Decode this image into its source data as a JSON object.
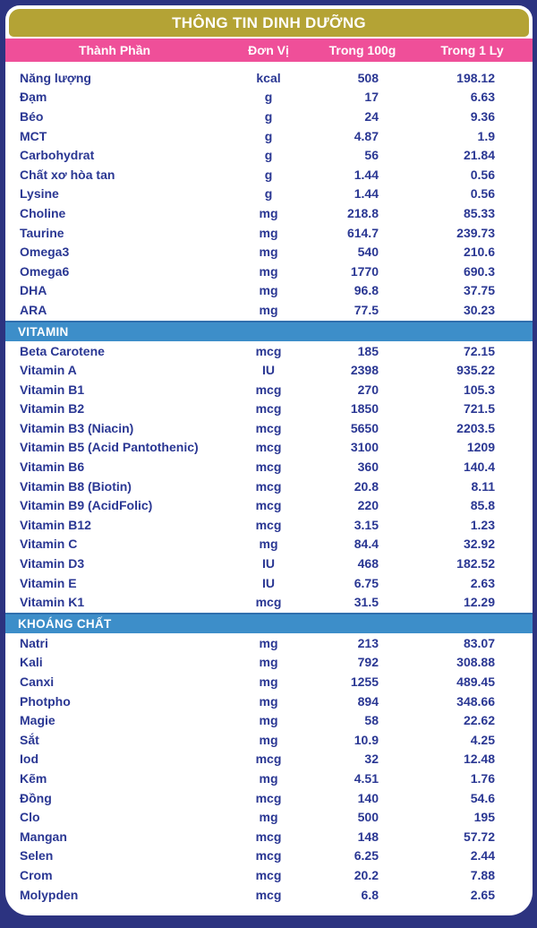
{
  "title": "THÔNG TIN DINH DƯỠNG",
  "columns": [
    "Thành Phần",
    "Đơn Vị",
    "Trong 100g",
    "Trong 1 Ly"
  ],
  "colors": {
    "navy_background": "#2c3380",
    "gold_header": "#b4a335",
    "pink_header": "#ef4f99",
    "section_bar_blue": "#3d8ec9",
    "section_bar_edge": "#2f6fae",
    "text_navy": "#2a3793"
  },
  "sections": [
    {
      "header": null,
      "rows": [
        {
          "name": "Năng lượng",
          "unit": "kcal",
          "per_100g": "508",
          "per_1ly": "198.12"
        },
        {
          "name": "Đạm",
          "unit": "g",
          "per_100g": "17",
          "per_1ly": "6.63"
        },
        {
          "name": "Béo",
          "unit": "g",
          "per_100g": "24",
          "per_1ly": "9.36"
        },
        {
          "name": "MCT",
          "unit": "g",
          "per_100g": "4.87",
          "per_1ly": "1.9"
        },
        {
          "name": "Carbohydrat",
          "unit": "g",
          "per_100g": "56",
          "per_1ly": "21.84"
        },
        {
          "name": "Chất xơ hòa tan",
          "unit": "g",
          "per_100g": "1.44",
          "per_1ly": "0.56"
        },
        {
          "name": "Lysine",
          "unit": "g",
          "per_100g": "1.44",
          "per_1ly": "0.56"
        },
        {
          "name": "Choline",
          "unit": "mg",
          "per_100g": "218.8",
          "per_1ly": "85.33"
        },
        {
          "name": "Taurine",
          "unit": "mg",
          "per_100g": "614.7",
          "per_1ly": "239.73"
        },
        {
          "name": "Omega3",
          "unit": "mg",
          "per_100g": "540",
          "per_1ly": "210.6"
        },
        {
          "name": "Omega6",
          "unit": "mg",
          "per_100g": "1770",
          "per_1ly": "690.3"
        },
        {
          "name": "DHA",
          "unit": "mg",
          "per_100g": "96.8",
          "per_1ly": "37.75"
        },
        {
          "name": "ARA",
          "unit": "mg",
          "per_100g": "77.5",
          "per_1ly": "30.23"
        }
      ]
    },
    {
      "header": "VITAMIN",
      "rows": [
        {
          "name": "Beta Carotene",
          "unit": "mcg",
          "per_100g": "185",
          "per_1ly": "72.15"
        },
        {
          "name": "Vitamin A",
          "unit": "IU",
          "per_100g": "2398",
          "per_1ly": "935.22"
        },
        {
          "name": "Vitamin B1",
          "unit": "mcg",
          "per_100g": "270",
          "per_1ly": "105.3"
        },
        {
          "name": "Vitamin B2",
          "unit": "mcg",
          "per_100g": "1850",
          "per_1ly": "721.5"
        },
        {
          "name": "Vitamin B3 (Niacin)",
          "unit": "mcg",
          "per_100g": "5650",
          "per_1ly": "2203.5"
        },
        {
          "name": "Vitamin B5 (Acid Pantothenic)",
          "unit": "mcg",
          "per_100g": "3100",
          "per_1ly": "1209"
        },
        {
          "name": "Vitamin B6",
          "unit": "mcg",
          "per_100g": "360",
          "per_1ly": "140.4"
        },
        {
          "name": "Vitamin B8 (Biotin)",
          "unit": "mcg",
          "per_100g": "20.8",
          "per_1ly": "8.11"
        },
        {
          "name": "Vitamin B9 (AcidFolic)",
          "unit": "mcg",
          "per_100g": "220",
          "per_1ly": "85.8"
        },
        {
          "name": "Vitamin B12",
          "unit": "mcg",
          "per_100g": "3.15",
          "per_1ly": "1.23"
        },
        {
          "name": "Vitamin C",
          "unit": "mg",
          "per_100g": "84.4",
          "per_1ly": "32.92"
        },
        {
          "name": "Vitamin D3",
          "unit": "IU",
          "per_100g": "468",
          "per_1ly": "182.52"
        },
        {
          "name": "Vitamin E",
          "unit": "IU",
          "per_100g": "6.75",
          "per_1ly": "2.63"
        },
        {
          "name": "Vitamin K1",
          "unit": "mcg",
          "per_100g": "31.5",
          "per_1ly": "12.29"
        }
      ]
    },
    {
      "header": "KHOÁNG CHẤT",
      "rows": [
        {
          "name": "Natri",
          "unit": "mg",
          "per_100g": "213",
          "per_1ly": "83.07"
        },
        {
          "name": "Kali",
          "unit": "mg",
          "per_100g": "792",
          "per_1ly": "308.88"
        },
        {
          "name": "Canxi",
          "unit": "mg",
          "per_100g": "1255",
          "per_1ly": "489.45"
        },
        {
          "name": "Photpho",
          "unit": "mg",
          "per_100g": "894",
          "per_1ly": "348.66"
        },
        {
          "name": "Magie",
          "unit": "mg",
          "per_100g": "58",
          "per_1ly": "22.62"
        },
        {
          "name": "Sắt",
          "unit": "mg",
          "per_100g": "10.9",
          "per_1ly": "4.25"
        },
        {
          "name": "Iod",
          "unit": "mcg",
          "per_100g": "32",
          "per_1ly": "12.48"
        },
        {
          "name": "Kẽm",
          "unit": "mg",
          "per_100g": "4.51",
          "per_1ly": "1.76"
        },
        {
          "name": "Đồng",
          "unit": "mcg",
          "per_100g": "140",
          "per_1ly": "54.6"
        },
        {
          "name": "Clo",
          "unit": "mg",
          "per_100g": "500",
          "per_1ly": "195"
        },
        {
          "name": "Mangan",
          "unit": "mcg",
          "per_100g": "148",
          "per_1ly": "57.72"
        },
        {
          "name": "Selen",
          "unit": "mcg",
          "per_100g": "6.25",
          "per_1ly": "2.44"
        },
        {
          "name": "Crom",
          "unit": "mcg",
          "per_100g": "20.2",
          "per_1ly": "7.88"
        },
        {
          "name": "Molypden",
          "unit": "mcg",
          "per_100g": "6.8",
          "per_1ly": "2.65"
        }
      ]
    }
  ]
}
